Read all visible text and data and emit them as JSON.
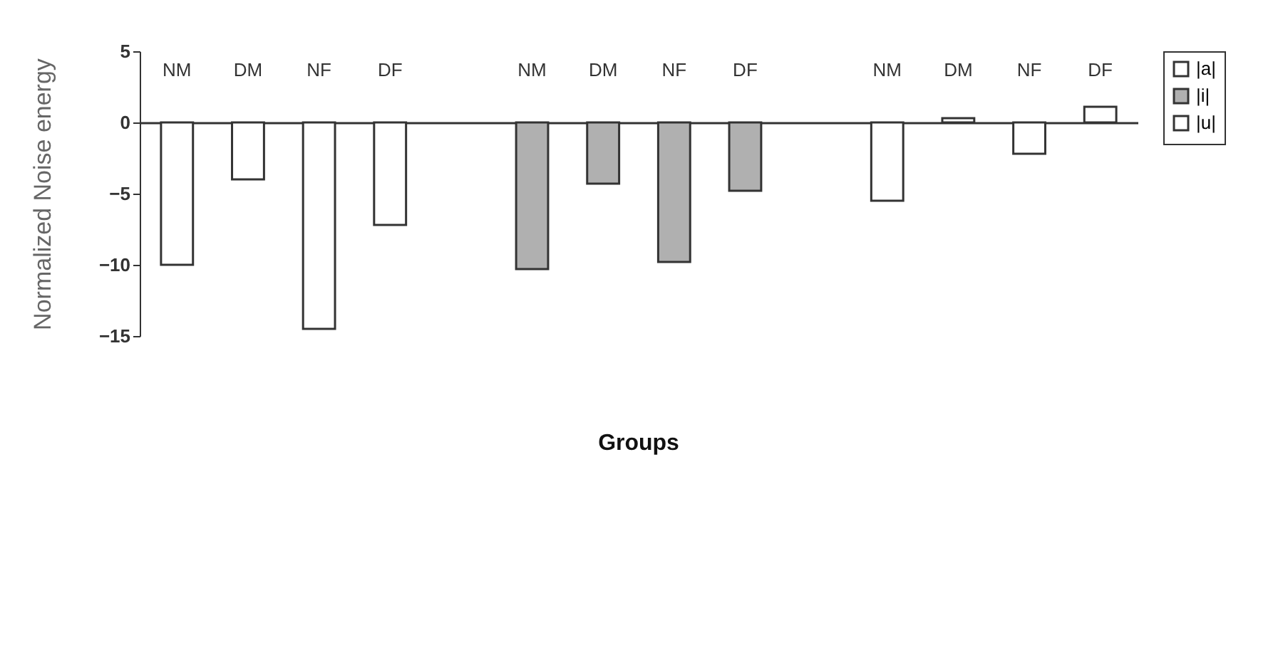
{
  "chart_data": {
    "type": "bar",
    "xlabel": "Groups",
    "ylabel": "Normalized Noise energy",
    "categories": [
      "NM",
      "DM",
      "NF",
      "DF",
      null,
      "NM",
      "DM",
      "NF",
      "DF",
      null,
      "NM",
      "DM",
      "NF",
      "DF"
    ],
    "series": [
      {
        "name": "|a|",
        "color": "#ffffff",
        "values": [
          -10,
          -4,
          -14.5,
          -7.2,
          null,
          null,
          null,
          null,
          null,
          null,
          null,
          null,
          null,
          null
        ]
      },
      {
        "name": "|i|",
        "color": "#b0b0b0",
        "values": [
          null,
          null,
          null,
          null,
          null,
          -10.3,
          -4.3,
          -9.8,
          -4.8,
          null,
          null,
          null,
          null,
          null
        ]
      },
      {
        "name": "|u|",
        "color": "#ffffff",
        "values": [
          null,
          null,
          null,
          null,
          null,
          null,
          null,
          null,
          null,
          null,
          -5.5,
          0.3,
          -2.2,
          1.1
        ]
      }
    ],
    "ylim": [
      -15,
      5
    ],
    "yticks": [
      -15,
      -10,
      -5,
      0,
      5
    ],
    "grid": false,
    "legend": "right"
  }
}
